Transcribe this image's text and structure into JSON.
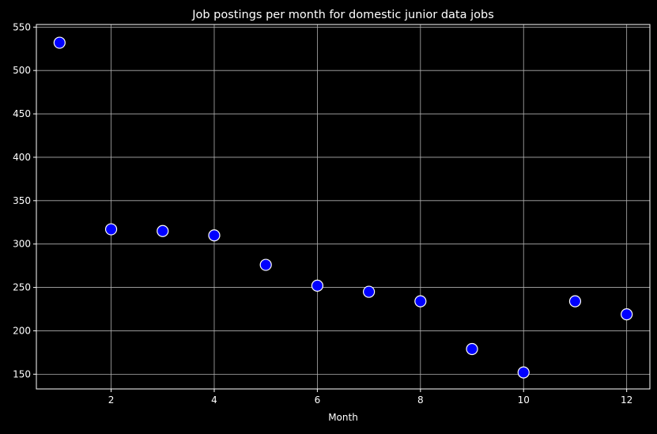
{
  "chart_data": {
    "type": "scatter",
    "title": "Job postings per month for domestic junior data jobs",
    "xlabel": "Month",
    "ylabel": "",
    "x": [
      1,
      2,
      3,
      4,
      5,
      6,
      7,
      8,
      9,
      10,
      11,
      12
    ],
    "y": [
      532,
      317,
      315,
      310,
      276,
      252,
      245,
      234,
      179,
      152,
      234,
      219
    ],
    "xlim": [
      0.55,
      12.45
    ],
    "ylim": [
      133,
      553
    ],
    "xticks": [
      2,
      4,
      6,
      8,
      10,
      12
    ],
    "yticks": [
      150,
      200,
      250,
      300,
      350,
      400,
      450,
      500,
      550
    ],
    "grid": true,
    "background_color": "#000000",
    "marker_fill_color": "#0000ff",
    "marker_edge_color": "#ffffff",
    "text_color": "#ffffff",
    "grid_color": "#b0b0b0"
  }
}
